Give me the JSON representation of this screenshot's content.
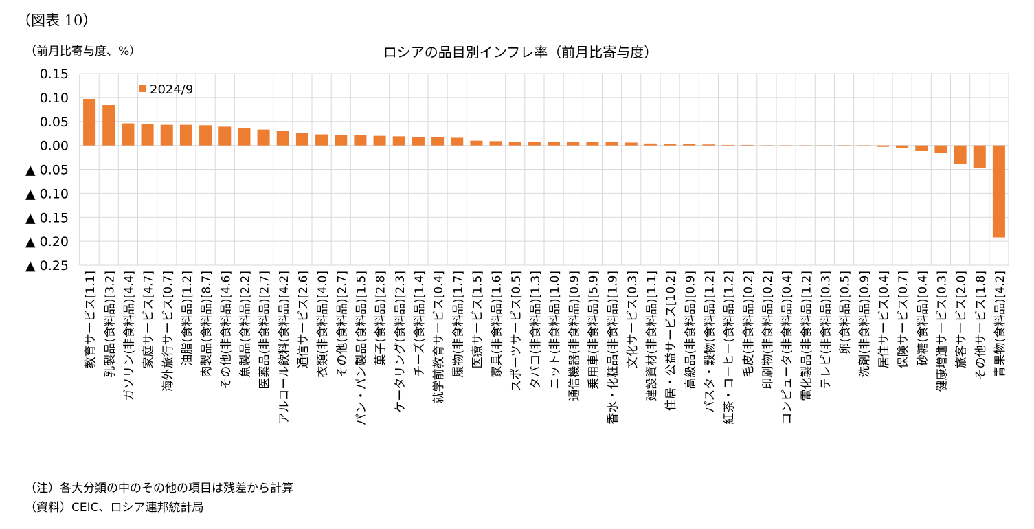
{
  "figure_label": "（図表 10）",
  "unit_label": "（前月比寄与度、%）",
  "notes": {
    "note": "（注）各大分類の中のその他の項目は残差から計算",
    "source": "（資料）CEIC、ロシア連邦統計局"
  },
  "colors": {
    "bar": "#ED7D31",
    "grid": "#D9D9D9",
    "axis": "#BFBFBF"
  },
  "chart_data": {
    "type": "bar",
    "title": "ロシアの品目別インフレ率（前月比寄与度）",
    "ylabel": "（前月比寄与度、%）",
    "xlabel": "",
    "ylim": [
      -0.25,
      0.15
    ],
    "yticks": [
      0.15,
      0.1,
      0.05,
      0.0,
      -0.05,
      -0.1,
      -0.15,
      -0.2,
      -0.25
    ],
    "ytick_labels": [
      "0.15",
      "0.10",
      "0.05",
      "0.00",
      "▲ 0.05",
      "▲ 0.10",
      "▲ 0.15",
      "▲ 0.20",
      "▲ 0.25"
    ],
    "grid": true,
    "legend": {
      "position": "top-left",
      "entries": [
        "2024/9"
      ]
    },
    "categories": [
      "教育サービス[1.1]",
      "乳製品(食料品)[3.2]",
      "ガソリン(非食料品)[4.4]",
      "家庭サービス[4.7]",
      "海外旅行サービス[0.7]",
      "油脂(食料品)[1.2]",
      "肉製品(食料品)[8.7]",
      "その他(非食料品)[4.6]",
      "魚製品(食料品)[2.2]",
      "医薬品(非食料品)[2.7]",
      "アルコール飲料(食料品)[4.2]",
      "通信サービス[2.6]",
      "衣類(非食料品)[4.0]",
      "その他(食料品)[2.7]",
      "パン・パン製品(食料品)[1.5]",
      "菓子(食料品)[2.8]",
      "ケータリング(食料品)[2.3]",
      "チーズ(食料品)[1.4]",
      "就学前教育サービス[0.4]",
      "履物(非食料品)[1.7]",
      "医療サービス[1.5]",
      "家具(非食料品)[1.6]",
      "スポーツサービス[0.5]",
      "タバコ(非食料品)[1.3]",
      "ニット(非食料品)[1.0]",
      "通信機器(非食料品)[0.9]",
      "乗用車(非食料品)[5.9]",
      "香水・化粧品(非食料品)[1.9]",
      "文化サービス[0.3]",
      "建設資材(非食料品)[1.1]",
      "住居・公益サービス[10.2]",
      "高級品(非食料品)[0.9]",
      "パスタ・穀物(食料品)[1.2]",
      "紅茶・コーヒー(食料品)[1.2]",
      "毛皮(非食料品)[0.2]",
      "印刷物(非食料品)[0.2]",
      "コンピュータ(非食料品)[0.4]",
      "電化製品(非食料品)[1.2]",
      "テレビ(非食料品)[0.3]",
      "卵(食料品)[0.5]",
      "洗剤(非食料品)[0.9]",
      "居住サービス[0.4]",
      "保険サービス[0.7]",
      "砂糖(食料品)[0.4]",
      "健康増進サービス[0.3]",
      "旅客サービス[2.0]",
      "その他サービス[1.8]",
      "青果物(食料品)[4.2]"
    ],
    "series": [
      {
        "name": "2024/9",
        "values": [
          0.097,
          0.084,
          0.046,
          0.044,
          0.043,
          0.043,
          0.042,
          0.039,
          0.036,
          0.033,
          0.031,
          0.026,
          0.023,
          0.022,
          0.021,
          0.02,
          0.019,
          0.018,
          0.017,
          0.016,
          0.01,
          0.009,
          0.008,
          0.008,
          0.007,
          0.007,
          0.007,
          0.007,
          0.006,
          0.004,
          0.003,
          0.003,
          0.002,
          0.001,
          0.001,
          0.0005,
          0.0003,
          0.0002,
          -0.0003,
          -0.0008,
          -0.0012,
          -0.003,
          -0.006,
          -0.012,
          -0.016,
          -0.038,
          -0.047,
          -0.192
        ]
      }
    ]
  }
}
